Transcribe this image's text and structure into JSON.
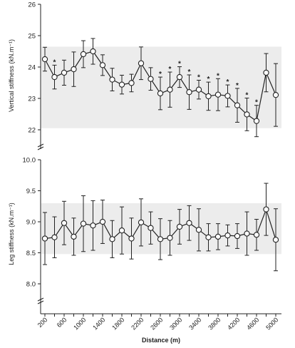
{
  "chart_data": [
    {
      "type": "line",
      "ylabel": "Vertical stiffness (kN.m⁻¹)",
      "xlabel": "",
      "ylim": [
        22,
        26
      ],
      "y_axis_break": true,
      "yticks": [
        22,
        23,
        24,
        25,
        26
      ],
      "shaded_band": [
        22.05,
        24.65
      ],
      "x": [
        200,
        400,
        600,
        800,
        1000,
        1200,
        1400,
        1600,
        1800,
        2000,
        2200,
        2400,
        2600,
        2800,
        3000,
        3200,
        3400,
        3600,
        3800,
        4000,
        4200,
        4400,
        4600,
        4800,
        5000
      ],
      "values": [
        24.25,
        23.68,
        23.82,
        23.93,
        24.41,
        24.5,
        24.06,
        23.6,
        23.44,
        23.49,
        24.12,
        23.62,
        23.16,
        23.28,
        23.68,
        23.2,
        23.28,
        23.07,
        23.12,
        23.08,
        22.78,
        22.49,
        22.28,
        23.82,
        23.11
      ],
      "errors": [
        0.38,
        0.38,
        0.4,
        0.55,
        0.43,
        0.41,
        0.33,
        0.36,
        0.3,
        0.28,
        0.52,
        0.36,
        0.52,
        0.56,
        0.33,
        0.55,
        0.3,
        0.45,
        0.51,
        0.35,
        0.54,
        0.52,
        0.5,
        0.61,
        1.0
      ],
      "significance": [
        "",
        "*",
        "",
        "",
        "",
        "",
        "",
        "",
        "",
        "",
        "",
        "",
        "*",
        "*",
        "*",
        "*",
        "*",
        "*",
        "*",
        "*",
        "*",
        "*",
        "*",
        "",
        ""
      ]
    },
    {
      "type": "line",
      "ylabel": "Leg stiffness (kN.m⁻¹)",
      "xlabel": "Distance (m)",
      "ylim": [
        8.0,
        10.0
      ],
      "y_axis_break": true,
      "yticks": [
        8.0,
        8.5,
        9.0,
        9.5,
        10.0
      ],
      "yticklabels": [
        "8.0",
        "8.5",
        "9.0",
        "9.5",
        "10.0"
      ],
      "shaded_band": [
        8.48,
        9.3
      ],
      "x": [
        200,
        400,
        600,
        800,
        1000,
        1200,
        1400,
        1600,
        1800,
        2000,
        2200,
        2400,
        2600,
        2800,
        3000,
        3200,
        3400,
        3600,
        3800,
        4000,
        4200,
        4400,
        4600,
        4800,
        5000
      ],
      "xticklabels": [
        "200",
        "600",
        "1000",
        "1400",
        "1800",
        "2200",
        "2600",
        "3000",
        "3400",
        "3800",
        "4200",
        "4600",
        "5000"
      ],
      "values": [
        8.73,
        8.75,
        8.98,
        8.76,
        8.97,
        8.94,
        9.0,
        8.72,
        8.86,
        8.73,
        8.99,
        8.9,
        8.72,
        8.74,
        8.92,
        8.98,
        8.87,
        8.75,
        8.76,
        8.78,
        8.77,
        8.81,
        8.79,
        9.2,
        8.71
      ],
      "errors": [
        0.42,
        0.33,
        0.35,
        0.3,
        0.45,
        0.4,
        0.35,
        0.3,
        0.38,
        0.33,
        0.38,
        0.26,
        0.33,
        0.28,
        0.28,
        0.28,
        0.34,
        0.22,
        0.21,
        0.17,
        0.2,
        0.35,
        0.25,
        0.42,
        0.5
      ]
    }
  ]
}
